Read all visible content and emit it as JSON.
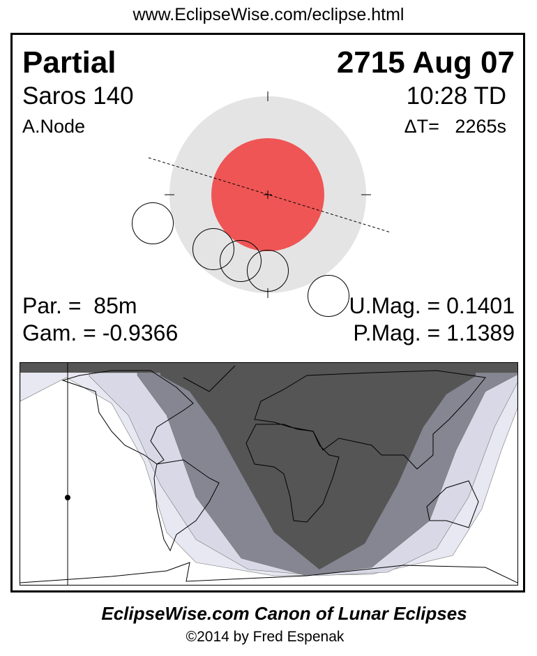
{
  "header": {
    "url": "www.EclipseWise.com/eclipse.html"
  },
  "eclipse": {
    "type": "Partial",
    "date": "2715 Aug 07",
    "saros": "Saros 140",
    "time": "10:28 TD",
    "node": "A.Node",
    "delta_t": "ΔT=   2265s",
    "partial_duration": "Par. =  85m",
    "gamma": "Gam. = -0.9366",
    "umbral_magnitude": "U.Mag. = 0.1401",
    "penumbral_magnitude": "P.Mag. = 1.1389"
  },
  "colors": {
    "penumbra": "#e4e4e4",
    "umbra": "#ef5555",
    "map_dark": "#555555",
    "map_mid": "#868692",
    "map_light": "#d8d8e6",
    "map_lightest": "#e8e8f2"
  },
  "footer": {
    "title": "EclipseWise.com Canon of Lunar Eclipses",
    "copyright": "©2014 by Fred Espenak"
  }
}
